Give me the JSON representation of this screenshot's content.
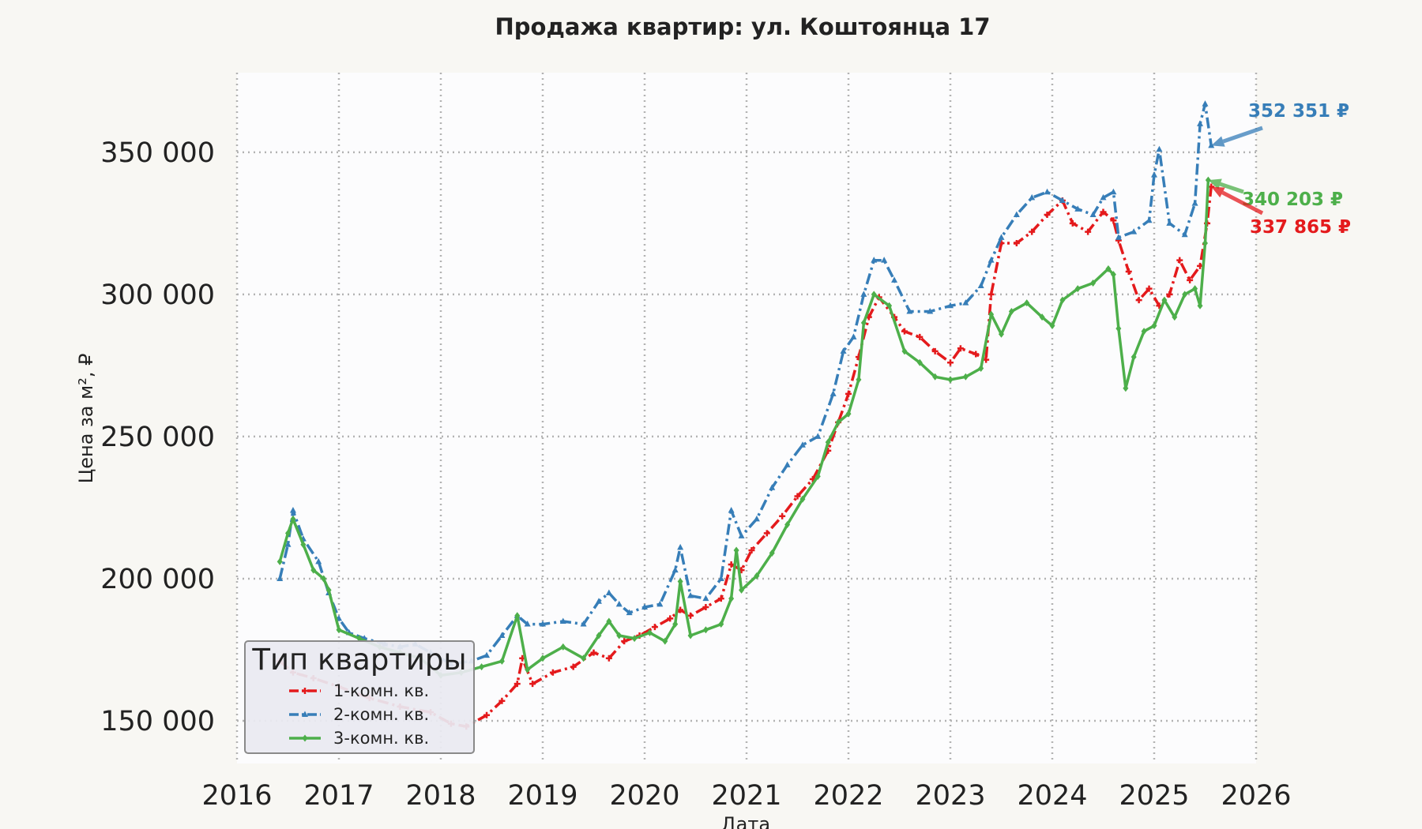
{
  "chart_data": {
    "type": "line",
    "title": "Продажа квартир: ул. Коштоянца 17",
    "xlabel": "Дата",
    "ylabel": "Цена за м², ₽",
    "xlim": [
      2016,
      2026
    ],
    "ylim": [
      135000,
      378000
    ],
    "x_ticks": [
      "2016",
      "2017",
      "2018",
      "2019",
      "2020",
      "2021",
      "2022",
      "2023",
      "2024",
      "2025",
      "2026"
    ],
    "y_ticks": [
      150000,
      200000,
      250000,
      300000,
      350000
    ],
    "y_tick_labels": [
      "150 000",
      "200 000",
      "250 000",
      "300 000",
      "350 000"
    ],
    "grid": true,
    "legend": {
      "title": "Тип квартиры",
      "position": "lower-left"
    },
    "series": [
      {
        "name": "1-комн. кв.",
        "color": "#e41a1c",
        "dash": "dashdot",
        "marker": "plus",
        "points": [
          [
            2016.42,
            171000
          ],
          [
            2016.55,
            167000
          ],
          [
            2016.75,
            165000
          ],
          [
            2017.0,
            162000
          ],
          [
            2017.3,
            158000
          ],
          [
            2017.6,
            155000
          ],
          [
            2017.9,
            153000
          ],
          [
            2018.1,
            149000
          ],
          [
            2018.25,
            148000
          ],
          [
            2018.45,
            152000
          ],
          [
            2018.6,
            157000
          ],
          [
            2018.75,
            163000
          ],
          [
            2018.8,
            172000
          ],
          [
            2018.9,
            163000
          ],
          [
            2019.1,
            167000
          ],
          [
            2019.3,
            169000
          ],
          [
            2019.5,
            174000
          ],
          [
            2019.65,
            172000
          ],
          [
            2019.8,
            178000
          ],
          [
            2019.95,
            180000
          ],
          [
            2020.1,
            183000
          ],
          [
            2020.25,
            186000
          ],
          [
            2020.35,
            189000
          ],
          [
            2020.45,
            187000
          ],
          [
            2020.6,
            190000
          ],
          [
            2020.75,
            193000
          ],
          [
            2020.85,
            205000
          ],
          [
            2020.95,
            203000
          ],
          [
            2021.05,
            210000
          ],
          [
            2021.2,
            216000
          ],
          [
            2021.35,
            222000
          ],
          [
            2021.5,
            229000
          ],
          [
            2021.65,
            235000
          ],
          [
            2021.8,
            245000
          ],
          [
            2021.9,
            255000
          ],
          [
            2022.0,
            265000
          ],
          [
            2022.1,
            278000
          ],
          [
            2022.2,
            292000
          ],
          [
            2022.3,
            299000
          ],
          [
            2022.45,
            292000
          ],
          [
            2022.55,
            287000
          ],
          [
            2022.7,
            285000
          ],
          [
            2022.85,
            280000
          ],
          [
            2023.0,
            276000
          ],
          [
            2023.1,
            281000
          ],
          [
            2023.25,
            279000
          ],
          [
            2023.35,
            277000
          ],
          [
            2023.4,
            300000
          ],
          [
            2023.5,
            318000
          ],
          [
            2023.65,
            318000
          ],
          [
            2023.8,
            322000
          ],
          [
            2023.95,
            328000
          ],
          [
            2024.1,
            333000
          ],
          [
            2024.2,
            325000
          ],
          [
            2024.35,
            322000
          ],
          [
            2024.5,
            329000
          ],
          [
            2024.6,
            326000
          ],
          [
            2024.65,
            319000
          ],
          [
            2024.75,
            308000
          ],
          [
            2024.85,
            298000
          ],
          [
            2024.95,
            302000
          ],
          [
            2025.05,
            296000
          ],
          [
            2025.15,
            300000
          ],
          [
            2025.25,
            312000
          ],
          [
            2025.35,
            305000
          ],
          [
            2025.45,
            310000
          ],
          [
            2025.52,
            325000
          ],
          [
            2025.56,
            337865
          ]
        ]
      },
      {
        "name": "2-комн. кв.",
        "color": "#377eb8",
        "dash": "dashdot",
        "marker": "triangle",
        "points": [
          [
            2016.42,
            200000
          ],
          [
            2016.5,
            212000
          ],
          [
            2016.55,
            224000
          ],
          [
            2016.65,
            214000
          ],
          [
            2016.8,
            206000
          ],
          [
            2016.9,
            195000
          ],
          [
            2017.0,
            186000
          ],
          [
            2017.1,
            181000
          ],
          [
            2017.25,
            179000
          ],
          [
            2017.45,
            177000
          ],
          [
            2017.6,
            176000
          ],
          [
            2017.75,
            177000
          ],
          [
            2017.9,
            174000
          ],
          [
            2018.1,
            170000
          ],
          [
            2018.3,
            171000
          ],
          [
            2018.45,
            173000
          ],
          [
            2018.6,
            180000
          ],
          [
            2018.75,
            187000
          ],
          [
            2018.85,
            184000
          ],
          [
            2019.0,
            184000
          ],
          [
            2019.2,
            185000
          ],
          [
            2019.4,
            184000
          ],
          [
            2019.55,
            192000
          ],
          [
            2019.65,
            195000
          ],
          [
            2019.75,
            191000
          ],
          [
            2019.85,
            188000
          ],
          [
            2020.0,
            190000
          ],
          [
            2020.15,
            191000
          ],
          [
            2020.3,
            203000
          ],
          [
            2020.35,
            211000
          ],
          [
            2020.45,
            194000
          ],
          [
            2020.6,
            193000
          ],
          [
            2020.75,
            200000
          ],
          [
            2020.85,
            224000
          ],
          [
            2020.95,
            215000
          ],
          [
            2021.1,
            221000
          ],
          [
            2021.25,
            232000
          ],
          [
            2021.4,
            240000
          ],
          [
            2021.55,
            247000
          ],
          [
            2021.7,
            250000
          ],
          [
            2021.85,
            265000
          ],
          [
            2021.95,
            280000
          ],
          [
            2022.05,
            285000
          ],
          [
            2022.15,
            300000
          ],
          [
            2022.25,
            312000
          ],
          [
            2022.35,
            312000
          ],
          [
            2022.45,
            305000
          ],
          [
            2022.6,
            294000
          ],
          [
            2022.8,
            294000
          ],
          [
            2023.0,
            296000
          ],
          [
            2023.15,
            297000
          ],
          [
            2023.3,
            303000
          ],
          [
            2023.4,
            312000
          ],
          [
            2023.5,
            320000
          ],
          [
            2023.65,
            328000
          ],
          [
            2023.8,
            334000
          ],
          [
            2023.95,
            336000
          ],
          [
            2024.1,
            333000
          ],
          [
            2024.25,
            330000
          ],
          [
            2024.4,
            328000
          ],
          [
            2024.5,
            334000
          ],
          [
            2024.6,
            336000
          ],
          [
            2024.65,
            320000
          ],
          [
            2024.8,
            322000
          ],
          [
            2024.95,
            326000
          ],
          [
            2025.0,
            342000
          ],
          [
            2025.05,
            351000
          ],
          [
            2025.15,
            325000
          ],
          [
            2025.3,
            321000
          ],
          [
            2025.4,
            332000
          ],
          [
            2025.45,
            360000
          ],
          [
            2025.5,
            367000
          ],
          [
            2025.56,
            352351
          ]
        ]
      },
      {
        "name": "3-комн. кв.",
        "color": "#4daf4a",
        "dash": "solid",
        "marker": "diamond",
        "points": [
          [
            2016.42,
            206000
          ],
          [
            2016.5,
            216000
          ],
          [
            2016.55,
            221000
          ],
          [
            2016.65,
            212000
          ],
          [
            2016.75,
            203000
          ],
          [
            2016.85,
            200000
          ],
          [
            2016.9,
            196000
          ],
          [
            2017.0,
            182000
          ],
          [
            2017.2,
            179000
          ],
          [
            2017.4,
            176000
          ],
          [
            2017.6,
            174000
          ],
          [
            2017.8,
            172000
          ],
          [
            2018.0,
            166000
          ],
          [
            2018.2,
            167000
          ],
          [
            2018.4,
            169000
          ],
          [
            2018.6,
            171000
          ],
          [
            2018.75,
            187000
          ],
          [
            2018.85,
            168000
          ],
          [
            2019.0,
            172000
          ],
          [
            2019.2,
            176000
          ],
          [
            2019.4,
            172000
          ],
          [
            2019.55,
            180000
          ],
          [
            2019.65,
            185000
          ],
          [
            2019.75,
            180000
          ],
          [
            2019.9,
            179000
          ],
          [
            2020.05,
            181000
          ],
          [
            2020.2,
            178000
          ],
          [
            2020.3,
            184000
          ],
          [
            2020.35,
            199000
          ],
          [
            2020.45,
            180000
          ],
          [
            2020.6,
            182000
          ],
          [
            2020.75,
            184000
          ],
          [
            2020.85,
            193000
          ],
          [
            2020.9,
            210000
          ],
          [
            2020.95,
            196000
          ],
          [
            2021.1,
            201000
          ],
          [
            2021.25,
            209000
          ],
          [
            2021.4,
            219000
          ],
          [
            2021.55,
            228000
          ],
          [
            2021.7,
            236000
          ],
          [
            2021.8,
            248000
          ],
          [
            2021.9,
            255000
          ],
          [
            2022.0,
            258000
          ],
          [
            2022.1,
            270000
          ],
          [
            2022.15,
            290000
          ],
          [
            2022.25,
            300000
          ],
          [
            2022.4,
            296000
          ],
          [
            2022.55,
            280000
          ],
          [
            2022.7,
            276000
          ],
          [
            2022.85,
            271000
          ],
          [
            2023.0,
            270000
          ],
          [
            2023.15,
            271000
          ],
          [
            2023.3,
            274000
          ],
          [
            2023.4,
            293000
          ],
          [
            2023.5,
            286000
          ],
          [
            2023.6,
            294000
          ],
          [
            2023.75,
            297000
          ],
          [
            2023.9,
            292000
          ],
          [
            2024.0,
            289000
          ],
          [
            2024.1,
            298000
          ],
          [
            2024.25,
            302000
          ],
          [
            2024.4,
            304000
          ],
          [
            2024.55,
            309000
          ],
          [
            2024.6,
            307000
          ],
          [
            2024.65,
            288000
          ],
          [
            2024.72,
            267000
          ],
          [
            2024.8,
            278000
          ],
          [
            2024.9,
            287000
          ],
          [
            2025.0,
            289000
          ],
          [
            2025.1,
            298000
          ],
          [
            2025.2,
            292000
          ],
          [
            2025.3,
            300000
          ],
          [
            2025.4,
            302000
          ],
          [
            2025.45,
            296000
          ],
          [
            2025.5,
            318000
          ],
          [
            2025.53,
            340203
          ]
        ]
      }
    ],
    "annotations": [
      {
        "text": "352 351 ₽",
        "series": "2-комн. кв.",
        "color": "#377eb8",
        "x": 2025.56,
        "y": 352351
      },
      {
        "text": "340 203 ₽",
        "series": "3-комн. кв.",
        "color": "#4daf4a",
        "x": 2025.53,
        "y": 340203
      },
      {
        "text": "337 865 ₽",
        "series": "1-комн. кв.",
        "color": "#e41a1c",
        "x": 2025.56,
        "y": 337865
      }
    ]
  }
}
